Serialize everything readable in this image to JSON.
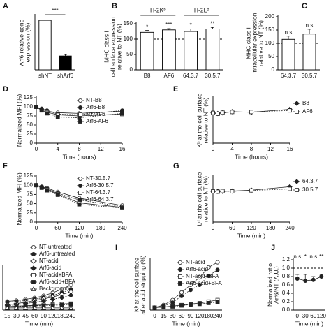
{
  "chart_data": [
    {
      "type": "bar",
      "label": "A",
      "categories": [
        "shNT",
        "shArf6"
      ],
      "values": [
        100,
        28
      ],
      "errors": [
        1,
        3
      ],
      "colors": [
        "#ffffff",
        "#000000"
      ],
      "ylim": [
        0,
        110
      ],
      "ylabel": [
        "Arf6 relative gene",
        "expression (%)"
      ],
      "annotation": "***"
    },
    {
      "type": "bar",
      "label": "B",
      "categories": [
        "B8",
        "AF6",
        "64.3.7",
        "30.5.7"
      ],
      "values": [
        122,
        130,
        125,
        133
      ],
      "errors": [
        6,
        4,
        8,
        5
      ],
      "colors": [
        "#ffffff",
        "#ffffff",
        "#ffffff",
        "#ffffff"
      ],
      "ylim": [
        0,
        150
      ],
      "yticks": [
        0,
        50,
        100,
        150
      ],
      "hline": 100,
      "group_labels": [
        "H-2Kᵇ",
        "H-2Lᵈ"
      ],
      "annotations": [
        "*",
        "***",
        "*",
        "**"
      ],
      "ylabel": [
        "MHC class I",
        "cell surface expression",
        "relative to NT (%)"
      ]
    },
    {
      "type": "bar",
      "label": "C",
      "categories": [
        "64.3.7",
        "30.5.7"
      ],
      "values": [
        115,
        135
      ],
      "errors": [
        12,
        18
      ],
      "colors": [
        "#ffffff",
        "#ffffff"
      ],
      "ylim": [
        0,
        200
      ],
      "yticks": [
        0,
        50,
        100,
        150,
        200
      ],
      "hline": 100,
      "annotations": [
        "n.s",
        "n.s"
      ],
      "ylabel": [
        "MHC class I",
        "intracellular expression",
        "relative to NT (%)"
      ]
    },
    {
      "type": "line",
      "label": "D",
      "x": [
        0,
        1,
        2,
        4,
        8,
        16
      ],
      "xlim": [
        0,
        16
      ],
      "xticks": [
        0,
        4,
        8,
        12,
        16
      ],
      "ylim": [
        0,
        125
      ],
      "yticks": [
        0,
        25,
        50,
        75,
        100,
        125
      ],
      "xlabel": "Time (hours)",
      "ylabel": [
        "Normalized MFI (%)"
      ],
      "legend": "top-right",
      "series": [
        {
          "name": "NT-B8",
          "marker": "circle-open",
          "color": "#222222",
          "values": [
            100,
            93,
            88,
            84,
            82,
            88
          ]
        },
        {
          "name": "Arf6-B8",
          "marker": "circle-filled",
          "color": "#222222",
          "values": [
            100,
            95,
            90,
            80,
            78,
            90
          ]
        },
        {
          "name": "NT-AF6",
          "marker": "square-open",
          "color": "#222222",
          "values": [
            100,
            90,
            85,
            78,
            75,
            80
          ]
        },
        {
          "name": "Arf6-AF6",
          "marker": "square-filled",
          "color": "#222222",
          "values": [
            100,
            92,
            82,
            72,
            70,
            82
          ]
        }
      ]
    },
    {
      "type": "line",
      "label": "E",
      "x": [
        0,
        1,
        2,
        4,
        8,
        16
      ],
      "xlim": [
        0,
        16
      ],
      "xticks": [
        0,
        4,
        8,
        12,
        16
      ],
      "ylim": [
        0,
        150
      ],
      "xlabel": "Time (hours)",
      "ylabel": [
        "Kᵇ at the cell surface",
        "relative to NT (%)"
      ],
      "legend": "right",
      "series": [
        {
          "name": "B8",
          "marker": "diamond-filled",
          "color": "#222222",
          "values": [
            100,
            98,
            100,
            104,
            102,
            112
          ]
        },
        {
          "name": "AF6",
          "marker": "square-open",
          "color": "#222222",
          "values": [
            100,
            97,
            101,
            103,
            103,
            108
          ]
        }
      ]
    },
    {
      "type": "line",
      "label": "F",
      "x": [
        0,
        15,
        30,
        60,
        120,
        240
      ],
      "xlim": [
        0,
        240
      ],
      "xticks": [
        0,
        60,
        120,
        180,
        240
      ],
      "ylim": [
        0,
        125
      ],
      "yticks": [
        0,
        25,
        50,
        75,
        100,
        125
      ],
      "xlabel": "Time (min)",
      "ylabel": [
        "Normalized MFI (%)"
      ],
      "legend": "top-right",
      "series": [
        {
          "name": "NT-30.5.7",
          "marker": "circle-open",
          "color": "#222222",
          "values": [
            100,
            96,
            92,
            82,
            65,
            45
          ]
        },
        {
          "name": "Arf6-30.5.7",
          "marker": "circle-filled",
          "color": "#222222",
          "values": [
            100,
            95,
            90,
            78,
            60,
            42
          ]
        },
        {
          "name": "NT-64.3.7",
          "marker": "square-open",
          "color": "#222222",
          "values": [
            100,
            94,
            88,
            76,
            52,
            40
          ]
        },
        {
          "name": "Arf6-64.3.7",
          "marker": "square-filled",
          "color": "#222222",
          "values": [
            100,
            93,
            86,
            74,
            48,
            38
          ]
        }
      ]
    },
    {
      "type": "line",
      "label": "G",
      "x": [
        0,
        15,
        30,
        60,
        120,
        240
      ],
      "xlim": [
        0,
        240
      ],
      "xticks": [
        0,
        60,
        120,
        180,
        240
      ],
      "ylim": [
        0,
        150
      ],
      "xlabel": "Time (min)",
      "ylabel": [
        "Lᵈ at the cell surface",
        "relative to NT (%)"
      ],
      "legend": "right",
      "series": [
        {
          "name": "64.3.7",
          "marker": "diamond-filled",
          "color": "#222222",
          "values": [
            100,
            100,
            100,
            101,
            104,
            115
          ]
        },
        {
          "name": "30.5.7",
          "marker": "square-open",
          "color": "#222222",
          "values": [
            100,
            99,
            101,
            100,
            103,
            108
          ]
        }
      ]
    },
    {
      "type": "line",
      "categories": [
        "15",
        "30",
        "45",
        "60",
        "90",
        "120",
        "180",
        "240"
      ],
      "ylim": [
        0,
        100
      ],
      "xlabel": "Time (min)",
      "legend": "top-right",
      "series": [
        {
          "name": "NT-untreated",
          "marker": "circle-open",
          "color": "#222222",
          "values": [
            20,
            22,
            25,
            28,
            33,
            40,
            48,
            58
          ]
        },
        {
          "name": "Arf6-untreated",
          "marker": "circle-filled",
          "color": "#222222",
          "values": [
            18,
            20,
            22,
            25,
            29,
            34,
            40,
            48
          ]
        },
        {
          "name": "NT-acid",
          "marker": "diamond-open",
          "color": "#222222",
          "values": [
            12,
            15,
            18,
            22,
            26,
            30,
            36,
            42
          ]
        },
        {
          "name": "Arf6-acid",
          "marker": "diamond-filled",
          "color": "#222222",
          "values": [
            10,
            12,
            15,
            18,
            21,
            25,
            29,
            34
          ]
        },
        {
          "name": "NT-acid+BFA",
          "marker": "square-open",
          "color": "#222222",
          "values": [
            8,
            9,
            10,
            11,
            12,
            13,
            14,
            15
          ]
        },
        {
          "name": "Arf6-acid+BFA",
          "marker": "square-filled",
          "color": "#222222",
          "values": [
            7,
            8,
            9,
            10,
            10,
            11,
            12,
            13
          ]
        },
        {
          "name": "Background",
          "marker": "triangle-open",
          "color": "#222222",
          "values": [
            5,
            5,
            5,
            5,
            5,
            5,
            5,
            5
          ]
        }
      ]
    },
    {
      "type": "line",
      "label": "I",
      "categories": [
        "0",
        "15",
        "30",
        "60",
        "90",
        "120",
        "180",
        "240"
      ],
      "ylim": [
        0,
        100
      ],
      "xlabel": "Time (min)",
      "ylabel": [
        "Kᵇ at the cell surface",
        "after acid stripping (%)"
      ],
      "legend": "top-right",
      "series": [
        {
          "name": "NT-acid",
          "marker": "circle-open",
          "color": "#222222",
          "values": [
            5,
            10,
            20,
            35,
            50,
            65,
            85,
            95
          ]
        },
        {
          "name": "Arf6-acid",
          "marker": "circle-filled",
          "color": "#222222",
          "values": [
            5,
            8,
            15,
            28,
            40,
            50,
            68,
            80
          ]
        },
        {
          "name": "NT-acid+BFA",
          "marker": "square-open",
          "color": "#222222",
          "values": [
            5,
            6,
            8,
            10,
            12,
            14,
            17,
            20
          ]
        },
        {
          "name": "Arf6-acid+BFA",
          "marker": "square-filled",
          "color": "#222222",
          "values": [
            5,
            6,
            7,
            9,
            11,
            12,
            14,
            16
          ]
        }
      ]
    },
    {
      "type": "line",
      "label": "J",
      "categories": [
        "0",
        "30",
        "60",
        "120"
      ],
      "ylim": [
        0,
        1.2
      ],
      "yticks": [
        {
          "value": 0,
          "label": "0.0"
        },
        0.2,
        0.4,
        0.6,
        0.8,
        {
          "value": 1,
          "label": "1.0"
        },
        1.2
      ],
      "hline": 1,
      "annotations": [
        "n.s",
        "*",
        "n.s",
        "**"
      ],
      "xlabel": "Time (min)",
      "ylabel": [
        "Normalized ratio",
        "Arf6/NT (A.U.)"
      ],
      "series": [
        {
          "name": "Arf6/NT",
          "marker": "circle-filled",
          "color": "#222222",
          "values": [
            0.75,
            0.7,
            0.72,
            0.8
          ],
          "errors": [
            0.1,
            0.15,
            0.08,
            0.05
          ]
        }
      ]
    }
  ]
}
